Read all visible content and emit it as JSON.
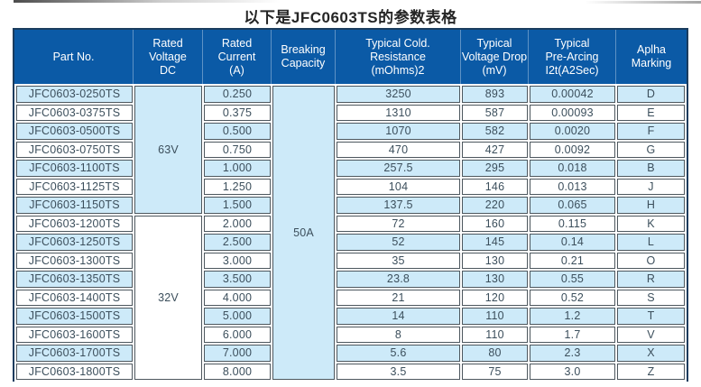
{
  "title": "以下是JFC0603TS的参数表格",
  "colors": {
    "header_bg": "#0b5aa6",
    "header_text": "#ffffff",
    "header_separator": "#5e92c5",
    "outer_border": "#1a3c5e",
    "cell_border": "#4d575e",
    "row_alt_bg": "#cdeaf9",
    "row_bg": "#ffffff",
    "body_text": "#3c4f5c"
  },
  "table": {
    "headers": [
      "Part No.",
      "Rated\nVoltage\nDC",
      "Rated\nCurrent\n(A)",
      "Breaking\nCapacity",
      "Typical Cold.\nResistance\n(mOhms)2",
      "Typical\nVoltage Drop\n(mV)",
      "Typical\nPre-Arcing\nI2t(A2Sec)",
      "Aplha\nMarking"
    ],
    "merged": {
      "voltage_63": {
        "label": "63V",
        "rows": 7
      },
      "voltage_32": {
        "label": "32V",
        "rows": 9
      },
      "breaking": {
        "label": "50A",
        "rows": 16
      }
    },
    "rows": [
      {
        "part": "JFC0603-0250TS",
        "current": "0.250",
        "resistance": "3250",
        "drop": "893",
        "arcing": "0.00042",
        "marking": "D"
      },
      {
        "part": "JFC0603-0375TS",
        "current": "0.375",
        "resistance": "1310",
        "drop": "587",
        "arcing": "0.00093",
        "marking": "E"
      },
      {
        "part": "JFC0603-0500TS",
        "current": "0.500",
        "resistance": "1070",
        "drop": "582",
        "arcing": "0.0020",
        "marking": "F"
      },
      {
        "part": "JFC0603-0750TS",
        "current": "0.750",
        "resistance": "470",
        "drop": "427",
        "arcing": "0.0092",
        "marking": "G"
      },
      {
        "part": "JFC0603-1100TS",
        "current": "1.000",
        "resistance": "257.5",
        "drop": "295",
        "arcing": "0.018",
        "marking": "B"
      },
      {
        "part": "JFC0603-1125TS",
        "current": "1.250",
        "resistance": "104",
        "drop": "146",
        "arcing": "0.013",
        "marking": "J"
      },
      {
        "part": "JFC0603-1150TS",
        "current": "1.500",
        "resistance": "137.5",
        "drop": "220",
        "arcing": "0.065",
        "marking": "H"
      },
      {
        "part": "JFC0603-1200TS",
        "current": "2.000",
        "resistance": "72",
        "drop": "160",
        "arcing": "0.115",
        "marking": "K"
      },
      {
        "part": "JFC0603-1250TS",
        "current": "2.500",
        "resistance": "52",
        "drop": "145",
        "arcing": "0.14",
        "marking": "L"
      },
      {
        "part": "JFC0603-1300TS",
        "current": "3.000",
        "resistance": "35",
        "drop": "130",
        "arcing": "0.21",
        "marking": "O"
      },
      {
        "part": "JFC0603-1350TS",
        "current": "3.500",
        "resistance": "23.8",
        "drop": "130",
        "arcing": "0.55",
        "marking": "R"
      },
      {
        "part": "JFC0603-1400TS",
        "current": "4.000",
        "resistance": "21",
        "drop": "120",
        "arcing": "0.52",
        "marking": "S"
      },
      {
        "part": "JFC0603-1500TS",
        "current": "5.000",
        "resistance": "14",
        "drop": "110",
        "arcing": "1.2",
        "marking": "T"
      },
      {
        "part": "JFC0603-1600TS",
        "current": "6.000",
        "resistance": "8",
        "drop": "110",
        "arcing": "1.7",
        "marking": "V"
      },
      {
        "part": "JFC0603-1700TS",
        "current": "7.000",
        "resistance": "5.6",
        "drop": "80",
        "arcing": "2.3",
        "marking": "X"
      },
      {
        "part": "JFC0603-1800TS",
        "current": "8.000",
        "resistance": "3.5",
        "drop": "75",
        "arcing": "3.0",
        "marking": "Z"
      }
    ]
  }
}
